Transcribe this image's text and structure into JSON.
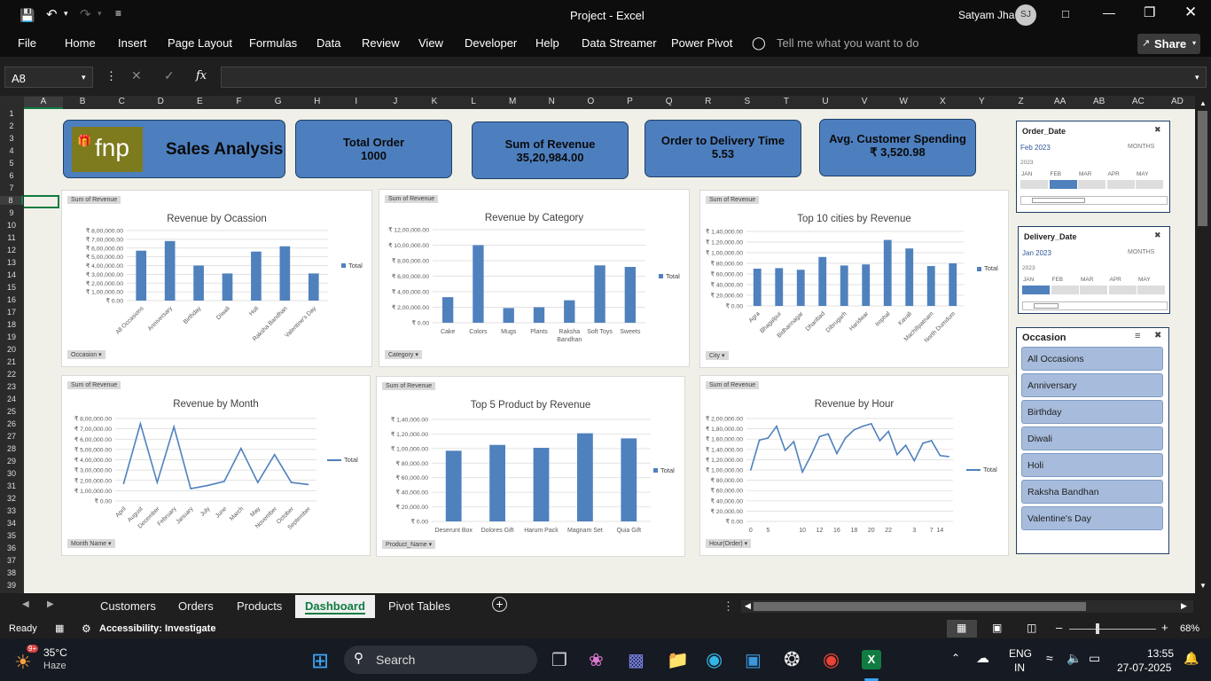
{
  "window": {
    "title": "Project - Excel",
    "user": "Satyam Jha",
    "initials": "SJ"
  },
  "menu": [
    "File",
    "Home",
    "Insert",
    "Page Layout",
    "Formulas",
    "Data",
    "Review",
    "View",
    "Developer",
    "Help",
    "Data Streamer",
    "Power Pivot"
  ],
  "tell_me": "Tell me what you want to do",
  "share": "Share",
  "namebox": "A8",
  "fx": "fx",
  "columns": [
    "A",
    "B",
    "C",
    "D",
    "E",
    "F",
    "G",
    "H",
    "I",
    "J",
    "K",
    "L",
    "M",
    "N",
    "O",
    "P",
    "Q",
    "R",
    "S",
    "T",
    "U",
    "V",
    "W",
    "X",
    "Y",
    "Z",
    "AA",
    "AB",
    "AC",
    "AD"
  ],
  "rows": [
    "1",
    "2",
    "3",
    "4",
    "5",
    "6",
    "7",
    "8",
    "9",
    "10",
    "11",
    "12",
    "13",
    "14",
    "15",
    "16",
    "17",
    "18",
    "19",
    "20",
    "21",
    "22",
    "23",
    "24",
    "25",
    "26",
    "27",
    "28",
    "29",
    "30",
    "31",
    "32",
    "33",
    "34",
    "35",
    "36",
    "37",
    "38",
    "39"
  ],
  "logo": "fnp",
  "header_title": "Sales Analysis",
  "kpis": [
    {
      "label": "Total Order",
      "value": "1000"
    },
    {
      "label": "Sum of Revenue",
      "value": "35,20,984.00"
    },
    {
      "label": "Order to Delivery Time",
      "value": "5.53"
    },
    {
      "label": "Avg. Customer Spending",
      "value": "₹ 3,520.98"
    }
  ],
  "chart_data": [
    {
      "type": "bar",
      "title": "Revenue by Ocassion",
      "field": "Sum of Revenue",
      "filter": "Occasion",
      "legend": "Total",
      "ylim": [
        0,
        800000
      ],
      "yticks": [
        "₹ 0.00",
        "₹ 1,00,000.00",
        "₹ 2,00,000.00",
        "₹ 3,00,000.00",
        "₹ 4,00,000.00",
        "₹ 5,00,000.00",
        "₹ 6,00,000.00",
        "₹ 7,00,000.00",
        "₹ 8,00,000.00"
      ],
      "categories": [
        "All Occasions",
        "Anniversary",
        "Birthday",
        "Diwali",
        "Holi",
        "Raksha Bandhan",
        "Valentine's Day"
      ],
      "values": [
        570000,
        680000,
        400000,
        310000,
        560000,
        620000,
        310000
      ]
    },
    {
      "type": "bar",
      "title": "Revenue by Category",
      "field": "Sum of Revenue",
      "filter": "Category",
      "legend": "Total",
      "ylim": [
        0,
        1200000
      ],
      "yticks": [
        "₹ 0.00",
        "₹ 2,00,000.00",
        "₹ 4,00,000.00",
        "₹ 6,00,000.00",
        "₹ 8,00,000.00",
        "₹ 10,00,000.00",
        "₹ 12,00,000.00"
      ],
      "categories": [
        "Cake",
        "Colors",
        "Mugs",
        "Plants",
        "Raksha Bandhan",
        "Soft Toys",
        "Sweets"
      ],
      "values": [
        330000,
        1000000,
        190000,
        200000,
        290000,
        740000,
        720000
      ]
    },
    {
      "type": "bar",
      "title": "Top 10 cities by Revenue",
      "field": "Sum of Revenue",
      "filter": "City",
      "legend": "Total",
      "ylim": [
        0,
        140000
      ],
      "yticks": [
        "₹ 0.00",
        "₹ 20,000.00",
        "₹ 40,000.00",
        "₹ 60,000.00",
        "₹ 80,000.00",
        "₹ 1,00,000.00",
        "₹ 1,20,000.00",
        "₹ 1,40,000.00"
      ],
      "categories": [
        "Agra",
        "Bhagalpur",
        "Bidhannagar",
        "Dhanbad",
        "Dibrugarh",
        "Haridwar",
        "Imphal",
        "Kavali",
        "Machilipatnam",
        "North Dumdum"
      ],
      "values": [
        70000,
        71000,
        68000,
        92000,
        76000,
        78000,
        124000,
        108000,
        75000,
        80000
      ]
    },
    {
      "type": "line",
      "title": "Revenue by Month",
      "field": "Sum of Revenue",
      "filter": "Month Name",
      "legend": "Total",
      "ylim": [
        0,
        800000
      ],
      "yticks": [
        "₹ 0.00",
        "₹ 1,00,000.00",
        "₹ 2,00,000.00",
        "₹ 3,00,000.00",
        "₹ 4,00,000.00",
        "₹ 5,00,000.00",
        "₹ 6,00,000.00",
        "₹ 7,00,000.00",
        "₹ 8,00,000.00"
      ],
      "categories": [
        "April",
        "August",
        "December",
        "February",
        "January",
        "July",
        "June",
        "March",
        "May",
        "November",
        "October",
        "September"
      ],
      "values": [
        170000,
        750000,
        180000,
        720000,
        120000,
        150000,
        190000,
        510000,
        180000,
        450000,
        180000,
        160000
      ]
    },
    {
      "type": "bar",
      "title": "Top 5 Product by Revenue",
      "field": "Sum of Revenue",
      "filter": "Product_Name",
      "legend": "Total",
      "ylim": [
        0,
        140000
      ],
      "yticks": [
        "₹ 0.00",
        "₹ 20,000.00",
        "₹ 40,000.00",
        "₹ 60,000.00",
        "₹ 80,000.00",
        "₹ 1,00,000.00",
        "₹ 1,20,000.00",
        "₹ 1,40,000.00"
      ],
      "categories": [
        "Deserunt Box",
        "Dolores Gift",
        "Harum Pack",
        "Magnam Set",
        "Quia Gift"
      ],
      "values": [
        97000,
        105000,
        101000,
        121000,
        114000
      ]
    },
    {
      "type": "line",
      "title": "Revenue by Hour",
      "field": "Sum of Revenue",
      "filter": "Hour(Order)",
      "legend": "Total",
      "ylim": [
        0,
        200000
      ],
      "yticks": [
        "₹ 0.00",
        "₹ 20,000.00",
        "₹ 40,000.00",
        "₹ 60,000.00",
        "₹ 80,000.00",
        "₹ 1,00,000.00",
        "₹ 1,20,000.00",
        "₹ 1,40,000.00",
        "₹ 1,60,000.00",
        "₹ 1,80,000.00",
        "₹ 2,00,000.00"
      ],
      "categories": [
        "0",
        "1",
        "5",
        "6",
        "8",
        "9",
        "10",
        "11",
        "12",
        "13",
        "16",
        "17",
        "18",
        "19",
        "20",
        "21",
        "22",
        "23",
        "2",
        "3",
        "4",
        "7",
        "14",
        "15"
      ],
      "labels": [
        "0",
        "5",
        "10",
        "12",
        "16",
        "18",
        "20",
        "22",
        "3",
        "7",
        "14"
      ],
      "values": [
        100000,
        158000,
        162000,
        185000,
        138000,
        155000,
        96000,
        128000,
        165000,
        170000,
        132000,
        162000,
        178000,
        185000,
        190000,
        157000,
        175000,
        130000,
        148000,
        118000,
        152000,
        157000,
        128000,
        126000
      ]
    }
  ],
  "slicers": {
    "order_date": {
      "title": "Order_Date",
      "selected": "Feb 2023",
      "period": "MONTHS",
      "year": "2023",
      "months": [
        "JAN",
        "FEB",
        "MAR",
        "APR",
        "MAY"
      ],
      "selected_index": 1
    },
    "delivery_date": {
      "title": "Delivery_Date",
      "selected": "Jan 2023",
      "period": "MONTHS",
      "year": "2023",
      "months": [
        "JAN",
        "FEB",
        "MAR",
        "APR",
        "MAY"
      ],
      "selected_index": 0
    },
    "occasion": {
      "title": "Occasion",
      "items": [
        "All Occasions",
        "Anniversary",
        "Birthday",
        "Diwali",
        "Holi",
        "Raksha Bandhan",
        "Valentine's Day"
      ]
    }
  },
  "tabs": [
    "Customers",
    "Orders",
    "Products",
    "Dashboard",
    "Pivot Tables"
  ],
  "active_tab": "Dashboard",
  "status": {
    "ready": "Ready",
    "accessibility": "Accessibility: Investigate",
    "zoom": "68%"
  },
  "taskbar": {
    "temp": "35°C",
    "weather": "Haze",
    "search": "Search",
    "lang1": "ENG",
    "lang2": "IN",
    "time": "13:55",
    "date": "27-07-2025",
    "badge": "9+"
  },
  "colors": {
    "bar": "#4f81bd",
    "kpi": "#4d7fbf",
    "excel": "#107c41"
  }
}
